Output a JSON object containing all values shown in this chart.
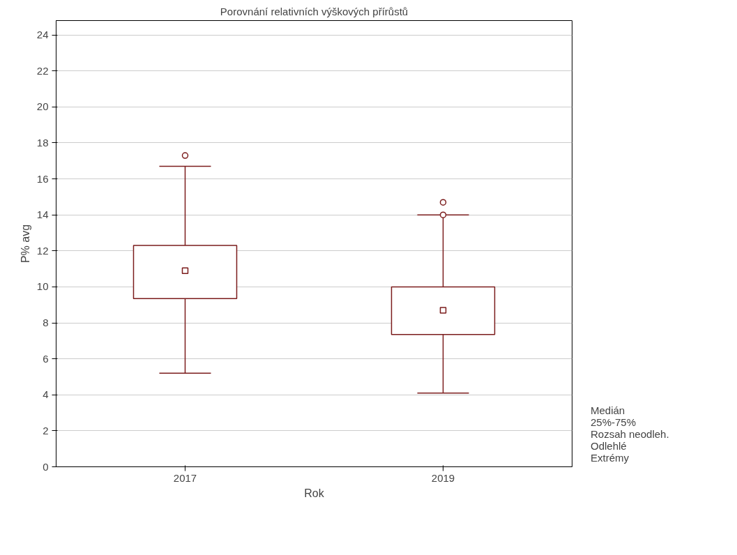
{
  "chart_data": {
    "type": "box",
    "title": "Porovnání relativních výškových přírůstů",
    "xlabel": "Rok",
    "ylabel": "P% avg",
    "categories": [
      "2017",
      "2019"
    ],
    "boxes": [
      {
        "low": 5.2,
        "q1": 9.35,
        "median": 10.9,
        "q3": 12.3,
        "high": 16.7,
        "outliers": [
          17.3
        ]
      },
      {
        "low": 4.1,
        "q1": 7.35,
        "median": 8.7,
        "q3": 10.0,
        "high": 14.0,
        "outliers": [
          14.7,
          14.0
        ]
      }
    ],
    "color": "#7b1c1c",
    "ylim": [
      0,
      24.8
    ],
    "yticks": [
      0,
      2,
      4,
      6,
      8,
      10,
      12,
      14,
      16,
      18,
      20,
      22,
      24
    ],
    "grid": "y",
    "annotations": [
      "Medián",
      "25%-75%",
      "Rozsah neodleh.",
      "Odlehlé",
      "Extrémy"
    ]
  }
}
